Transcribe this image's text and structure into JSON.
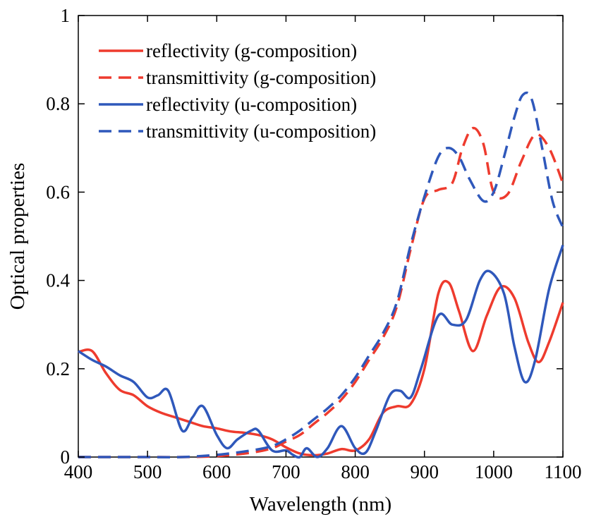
{
  "chart_data": {
    "type": "line",
    "xlabel": "Wavelength (nm)",
    "ylabel": "Optical properties",
    "xlim": [
      400,
      1100
    ],
    "ylim": [
      0,
      1
    ],
    "xticks": [
      400,
      500,
      600,
      700,
      800,
      900,
      1000,
      1100
    ],
    "yticks": [
      0,
      0.2,
      0.4,
      0.6,
      0.8,
      1
    ],
    "ytick_labels": [
      "0",
      "0.2",
      "0.4",
      "0.6",
      "0.8",
      "1"
    ],
    "grid": false,
    "legend_position": "top-left",
    "series": [
      {
        "name": "reflectivity (g-composition)",
        "color": "#ee3b2e",
        "dash": "solid",
        "x": [
          400,
          420,
          440,
          460,
          480,
          500,
          520,
          540,
          560,
          580,
          600,
          620,
          640,
          660,
          680,
          700,
          720,
          740,
          760,
          780,
          800,
          820,
          840,
          860,
          880,
          900,
          920,
          935,
          950,
          970,
          990,
          1010,
          1030,
          1050,
          1065,
          1080,
          1100
        ],
        "y": [
          0.238,
          0.24,
          0.19,
          0.152,
          0.14,
          0.115,
          0.1,
          0.09,
          0.08,
          0.07,
          0.065,
          0.058,
          0.055,
          0.05,
          0.04,
          0.022,
          0.008,
          0.004,
          0.008,
          0.018,
          0.015,
          0.04,
          0.1,
          0.115,
          0.12,
          0.2,
          0.37,
          0.395,
          0.33,
          0.24,
          0.32,
          0.385,
          0.36,
          0.26,
          0.215,
          0.26,
          0.35
        ]
      },
      {
        "name": "transmittivity (g-composition)",
        "color": "#ee3b2e",
        "dash": "dashed",
        "x": [
          400,
          450,
          500,
          550,
          600,
          650,
          680,
          700,
          720,
          740,
          760,
          780,
          800,
          820,
          840,
          860,
          880,
          900,
          920,
          940,
          955,
          970,
          985,
          1000,
          1020,
          1040,
          1060,
          1080,
          1100
        ],
        "y": [
          0,
          0,
          0,
          0,
          0.002,
          0.01,
          0.02,
          0.035,
          0.05,
          0.075,
          0.1,
          0.13,
          0.17,
          0.22,
          0.27,
          0.34,
          0.47,
          0.585,
          0.605,
          0.62,
          0.7,
          0.745,
          0.71,
          0.6,
          0.595,
          0.67,
          0.73,
          0.7,
          0.62
        ]
      },
      {
        "name": "reflectivity (u-composition)",
        "color": "#2f58bb",
        "dash": "solid",
        "x": [
          400,
          420,
          440,
          460,
          480,
          500,
          515,
          530,
          550,
          565,
          580,
          600,
          615,
          630,
          650,
          660,
          680,
          700,
          710,
          720,
          730,
          745,
          760,
          780,
          800,
          815,
          830,
          850,
          865,
          880,
          895,
          920,
          940,
          960,
          980,
          995,
          1015,
          1030,
          1045,
          1060,
          1080,
          1100
        ],
        "y": [
          0.24,
          0.22,
          0.205,
          0.185,
          0.17,
          0.135,
          0.14,
          0.15,
          0.06,
          0.09,
          0.115,
          0.05,
          0.02,
          0.04,
          0.06,
          0.06,
          0.015,
          0.015,
          0.005,
          0.0,
          0.02,
          0.0,
          0.02,
          0.07,
          0.02,
          0.01,
          0.06,
          0.14,
          0.15,
          0.135,
          0.2,
          0.32,
          0.3,
          0.31,
          0.4,
          0.42,
          0.37,
          0.25,
          0.17,
          0.22,
          0.38,
          0.48
        ]
      },
      {
        "name": "transmittivity (u-composition)",
        "color": "#2f58bb",
        "dash": "dashed",
        "x": [
          400,
          450,
          500,
          550,
          600,
          650,
          680,
          700,
          720,
          740,
          760,
          780,
          800,
          820,
          840,
          860,
          880,
          900,
          920,
          935,
          950,
          965,
          985,
          1000,
          1015,
          1030,
          1042,
          1055,
          1070,
          1085,
          1100
        ],
        "y": [
          0,
          0,
          0,
          0,
          0.005,
          0.015,
          0.025,
          0.04,
          0.06,
          0.085,
          0.11,
          0.14,
          0.18,
          0.23,
          0.28,
          0.35,
          0.48,
          0.59,
          0.68,
          0.7,
          0.68,
          0.63,
          0.58,
          0.6,
          0.68,
          0.77,
          0.82,
          0.81,
          0.7,
          0.58,
          0.52
        ]
      }
    ]
  }
}
